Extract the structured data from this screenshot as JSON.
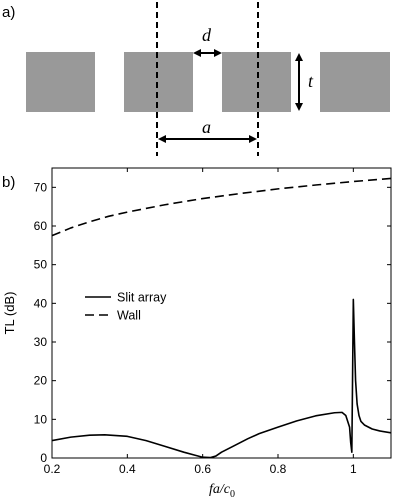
{
  "panels": {
    "a": {
      "label": "a)",
      "symbols": {
        "d": "d",
        "t": "t",
        "a": "a"
      }
    },
    "b": {
      "label": "b)"
    }
  },
  "chart_data": {
    "type": "line",
    "title": "",
    "xlabel": "fa/c",
    "xlabel_subscript": "0",
    "ylabel": "TL (dB)",
    "xlim": [
      0.2,
      1.1
    ],
    "ylim": [
      0,
      75
    ],
    "x_ticks": [
      0.2,
      0.4,
      0.6,
      0.8,
      1
    ],
    "x_tick_labels": [
      "0.2",
      "0.4",
      "0.6",
      "0.8",
      "1"
    ],
    "y_ticks": [
      0,
      10,
      20,
      30,
      40,
      50,
      60,
      70
    ],
    "y_tick_labels": [
      "0",
      "10",
      "20",
      "30",
      "40",
      "50",
      "60",
      "70"
    ],
    "grid": false,
    "legend_position": "center-left",
    "series": [
      {
        "name": "Slit array",
        "style": "solid",
        "color": "#000000",
        "x": [
          0.2,
          0.25,
          0.3,
          0.34,
          0.4,
          0.45,
          0.5,
          0.55,
          0.58,
          0.6,
          0.62,
          0.635,
          0.65,
          0.68,
          0.72,
          0.75,
          0.8,
          0.85,
          0.9,
          0.95,
          0.97,
          0.98,
          0.99,
          0.993,
          0.996,
          1.0,
          1.003,
          1.006,
          1.01,
          1.015,
          1.02,
          1.03,
          1.05,
          1.07,
          1.1
        ],
        "y": [
          4.5,
          5.4,
          5.9,
          6.0,
          5.6,
          4.5,
          3.0,
          1.5,
          0.7,
          0.2,
          0.1,
          0.5,
          1.5,
          3.0,
          5.0,
          6.3,
          8.0,
          9.6,
          10.9,
          11.7,
          11.8,
          11.0,
          8.0,
          4.0,
          1.5,
          41.0,
          30.0,
          20.0,
          14.0,
          11.0,
          9.5,
          8.5,
          7.5,
          7.0,
          6.5
        ]
      },
      {
        "name": "Wall",
        "style": "dashed",
        "color": "#000000",
        "x": [
          0.2,
          0.25,
          0.3,
          0.35,
          0.4,
          0.5,
          0.6,
          0.7,
          0.8,
          0.9,
          1.0,
          1.1
        ],
        "y": [
          57.5,
          59.5,
          61.1,
          62.5,
          63.6,
          65.5,
          67.1,
          68.4,
          69.6,
          70.6,
          71.5,
          72.3
        ]
      }
    ]
  }
}
